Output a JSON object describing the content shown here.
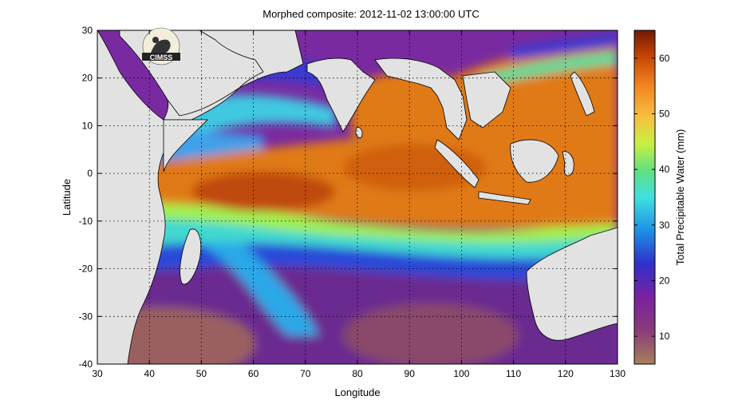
{
  "title": "Morphed composite: 2012-11-02 13:00:00 UTC",
  "logo": {
    "text": "CIMSS"
  },
  "xaxis": {
    "label": "Longitude",
    "ticks": [
      "30",
      "40",
      "50",
      "60",
      "70",
      "80",
      "90",
      "100",
      "110",
      "120",
      "130"
    ],
    "range": [
      30,
      130
    ]
  },
  "yaxis": {
    "label": "Latitude",
    "ticks": [
      "30",
      "20",
      "10",
      "0",
      "-10",
      "-20",
      "-30",
      "-40"
    ],
    "range": [
      -40,
      30
    ]
  },
  "colorbar": {
    "label": "Total Precipitable Water (mm)",
    "ticks": [
      "60",
      "50",
      "40",
      "30",
      "20",
      "10"
    ],
    "range": [
      5,
      65
    ]
  },
  "grid": true
}
